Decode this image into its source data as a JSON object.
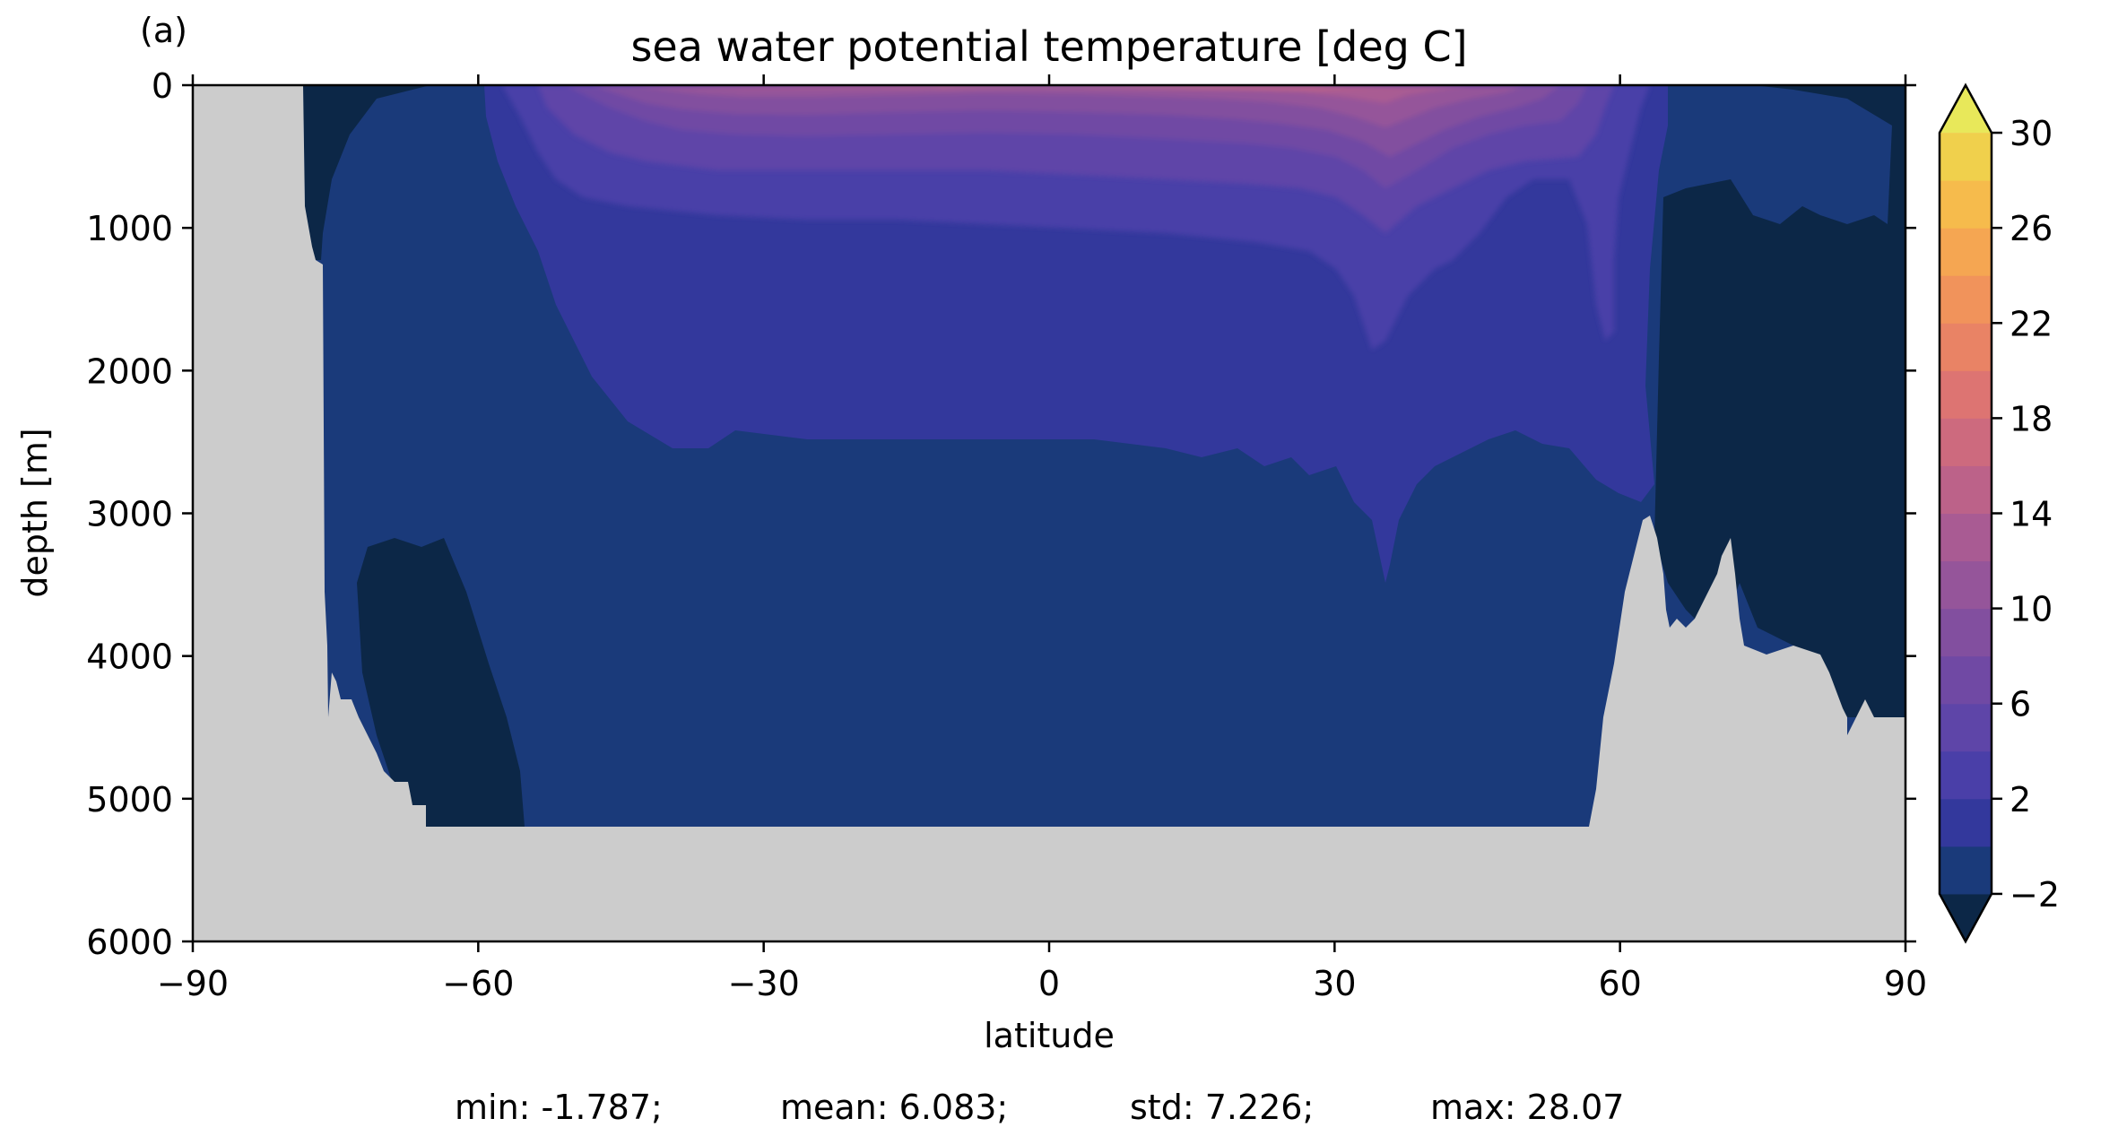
{
  "chart_data": {
    "type": "heatmap",
    "panel_label": "(a)",
    "title": "sea water potential temperature [deg C]",
    "xlabel": "latitude",
    "ylabel": "depth [m]",
    "xlim": [
      -90,
      90
    ],
    "ylim": [
      6000,
      0
    ],
    "xticks": [
      -90,
      -60,
      -30,
      0,
      30,
      60,
      90
    ],
    "xtick_labels": [
      "−90",
      "−60",
      "−30",
      "0",
      "30",
      "60",
      "90"
    ],
    "yticks": [
      0,
      1000,
      2000,
      3000,
      4000,
      5000,
      6000
    ],
    "ytick_labels": [
      "0",
      "1000",
      "2000",
      "3000",
      "4000",
      "5000",
      "6000"
    ],
    "colorbar": {
      "levels": [
        -4,
        -2,
        0,
        2,
        4,
        6,
        8,
        10,
        12,
        14,
        16,
        18,
        20,
        22,
        24,
        26,
        28,
        30,
        32
      ],
      "colors": [
        "#0c2747",
        "#1a3a7a",
        "#33389c",
        "#4a3fa8",
        "#5e45a8",
        "#7049a4",
        "#824f9f",
        "#95559a",
        "#a95b93",
        "#bc6289",
        "#cd6a7e",
        "#dd7472",
        "#e98365",
        "#f1935b",
        "#f5a652",
        "#f6bb4c",
        "#f0d04c",
        "#e8e85a"
      ],
      "extend": "both",
      "tick_values": [
        30,
        26,
        22,
        18,
        14,
        10,
        6,
        2,
        -2
      ],
      "tick_labels": [
        "30",
        "26",
        "22",
        "18",
        "14",
        "10",
        "6",
        "2",
        "−2"
      ],
      "range": [
        -4,
        32
      ]
    },
    "land_color": "#cccccc",
    "stats": {
      "min": "min: -1.787;",
      "mean": "mean: 6.083;",
      "std": "std: 7.226;",
      "max": "max: 28.07"
    }
  }
}
